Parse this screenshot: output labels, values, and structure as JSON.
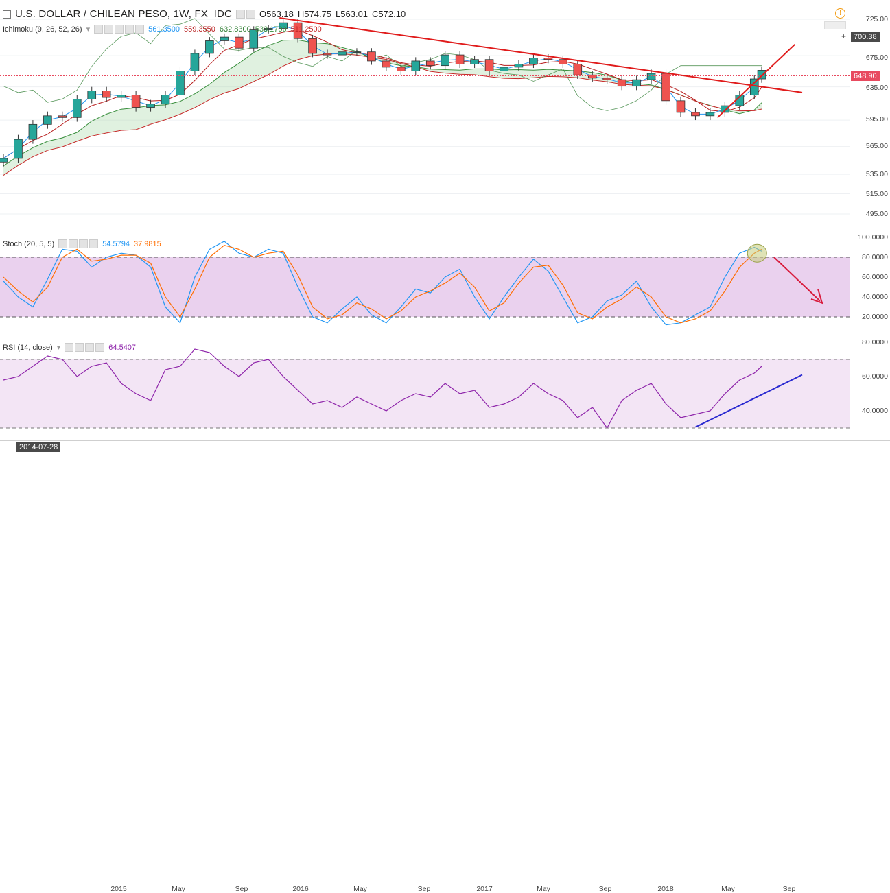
{
  "header": {
    "symbol_title": "U.S. DOLLAR / CHILEAN PESO, 1W, FX_IDC",
    "open": "O563.18",
    "high": "H574.75",
    "low": "L563.01",
    "close": "C572.10"
  },
  "ichimoku": {
    "label": "Ichimoku (9, 26, 52, 26)",
    "v1": "561.3500",
    "v2": "559.3550",
    "v3": "632.8300",
    "v4": "533.1700",
    "v5": "511.2500",
    "c1": "#2196f3",
    "c2": "#b71c1c",
    "c3": "#2e7d32",
    "c4": "#388e3c",
    "c5": "#c62828"
  },
  "stoch": {
    "label": "Stoch (20, 5, 5)",
    "k": "54.5794",
    "d": "37.9815",
    "k_color": "#2196f3",
    "d_color": "#ff6d00"
  },
  "rsi": {
    "label": "RSI (14, close)",
    "value": "64.5407",
    "color": "#8e24aa"
  },
  "price_axis": {
    "ticks": [
      "725.00",
      "675.00",
      "635.00",
      "595.00",
      "565.00",
      "535.00",
      "515.00",
      "495.00"
    ],
    "last_price": "648.90",
    "crosshair_price": "700.38"
  },
  "stoch_axis": {
    "ticks": [
      "100.0000",
      "80.0000",
      "60.0000",
      "40.0000",
      "20.0000"
    ]
  },
  "rsi_axis": {
    "ticks": [
      "80.0000",
      "60.0000",
      "40.0000"
    ]
  },
  "time_axis": {
    "cursor_date": "2014-07-28",
    "labels": [
      "2015",
      "May",
      "Sep",
      "2016",
      "May",
      "Sep",
      "2017",
      "May",
      "Sep",
      "2018",
      "May",
      "Sep"
    ]
  },
  "chart_data": [
    {
      "type": "candlestick",
      "title": "U.S. DOLLAR / CHILEAN PESO, 1W, FX_IDC",
      "ylim": [
        485,
        745
      ],
      "y_scale": "log",
      "x": [
        "2014-07-28",
        "2014-08-25",
        "2014-09-22",
        "2014-10-20",
        "2014-11-17",
        "2014-12-15",
        "2015-01-12",
        "2015-02-09",
        "2015-03-09",
        "2015-04-06",
        "2015-05-04",
        "2015-06-01",
        "2015-06-29",
        "2015-07-27",
        "2015-08-24",
        "2015-09-21",
        "2015-10-19",
        "2015-11-16",
        "2015-12-14",
        "2016-01-11",
        "2016-02-08",
        "2016-03-07",
        "2016-04-04",
        "2016-05-02",
        "2016-05-30",
        "2016-06-27",
        "2016-07-25",
        "2016-08-22",
        "2016-09-19",
        "2016-10-17",
        "2016-11-14",
        "2016-12-12",
        "2017-01-09",
        "2017-02-06",
        "2017-03-06",
        "2017-04-03",
        "2017-05-01",
        "2017-05-29",
        "2017-06-26",
        "2017-07-24",
        "2017-08-21",
        "2017-09-18",
        "2017-10-16",
        "2017-11-13",
        "2017-12-11",
        "2018-01-08",
        "2018-02-05",
        "2018-03-05",
        "2018-04-02",
        "2018-04-30",
        "2018-05-28",
        "2018-06-25",
        "2018-07-09"
      ],
      "close": [
        552,
        573,
        590,
        600,
        598,
        620,
        630,
        622,
        625,
        610,
        614,
        625,
        655,
        678,
        695,
        700,
        685,
        710,
        712,
        720,
        698,
        678,
        676,
        680,
        680,
        668,
        660,
        655,
        668,
        662,
        676,
        664,
        670,
        655,
        660,
        664,
        672,
        670,
        664,
        650,
        646,
        644,
        636,
        644,
        652,
        618,
        604,
        600,
        604,
        612,
        625,
        645,
        656
      ],
      "annotations": {
        "resistance_trendline": {
          "from": [
            "2016-01-04",
            727
          ],
          "to": [
            "2018-09-24",
            628
          ]
        },
        "support_trendline": {
          "from": [
            "2018-04-16",
            598
          ],
          "to": [
            "2018-09-10",
            690
          ]
        },
        "last_price_line": 648.9
      }
    },
    {
      "type": "line",
      "title": "Stoch (20, 5, 5)",
      "ylim": [
        0,
        100
      ],
      "bands": [
        20,
        80
      ],
      "series": [
        {
          "name": "%K",
          "color": "#2196f3",
          "values": [
            56,
            40,
            30,
            58,
            88,
            86,
            70,
            80,
            84,
            82,
            70,
            30,
            14,
            60,
            88,
            96,
            84,
            80,
            88,
            84,
            50,
            20,
            14,
            28,
            40,
            22,
            14,
            30,
            48,
            44,
            60,
            68,
            40,
            18,
            40,
            60,
            78,
            66,
            40,
            14,
            20,
            36,
            42,
            56,
            30,
            12,
            14,
            22,
            30,
            60,
            84,
            90,
            86
          ]
        },
        {
          "name": "%D",
          "color": "#ff6d00",
          "values": [
            60,
            46,
            35,
            50,
            80,
            88,
            76,
            78,
            82,
            82,
            74,
            40,
            20,
            48,
            80,
            92,
            88,
            80,
            84,
            86,
            62,
            30,
            18,
            22,
            34,
            28,
            18,
            26,
            40,
            46,
            54,
            64,
            50,
            26,
            34,
            54,
            70,
            72,
            52,
            24,
            18,
            30,
            38,
            50,
            40,
            20,
            14,
            18,
            26,
            46,
            70,
            84,
            88
          ]
        }
      ]
    },
    {
      "type": "line",
      "title": "RSI (14, close)",
      "ylim": [
        25,
        85
      ],
      "bands": [
        30,
        70
      ],
      "series": [
        {
          "name": "RSI",
          "color": "#8e24aa",
          "values": [
            58,
            60,
            66,
            72,
            70,
            60,
            66,
            68,
            56,
            50,
            46,
            64,
            66,
            76,
            74,
            66,
            60,
            68,
            70,
            60,
            52,
            44,
            46,
            42,
            48,
            44,
            40,
            46,
            50,
            48,
            56,
            50,
            52,
            42,
            44,
            48,
            56,
            50,
            46,
            36,
            42,
            30,
            46,
            52,
            56,
            44,
            36,
            38,
            40,
            50,
            58,
            62,
            66
          ]
        },
        {
          "name": "RSI trendline",
          "color": "#2a2ad0",
          "values": []
        }
      ],
      "annotations": {
        "rsi_support_trendline": {
          "from": [
            "2018-03-05",
            30.5
          ],
          "to": [
            "2018-09-24",
            61
          ]
        }
      }
    }
  ]
}
